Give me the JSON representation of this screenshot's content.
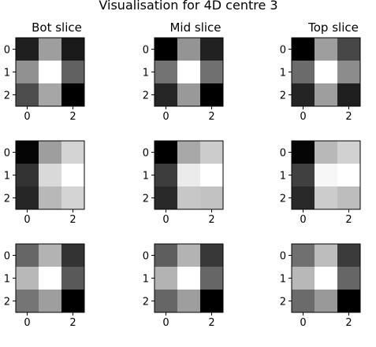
{
  "chart_data": {
    "type": "heatmap",
    "title": "Visualisation for 4D centre 3",
    "colormap": "gray",
    "grid": false,
    "column_titles": [
      "Bot slice",
      "Mid slice",
      "Top slice"
    ],
    "x_ticks": [
      "0",
      "2"
    ],
    "y_ticks": [
      "0",
      "1",
      "2"
    ],
    "panels": [
      [
        [
          [
            0.12,
            0.62,
            0.1
          ],
          [
            0.57,
            1.0,
            0.38
          ],
          [
            0.3,
            0.65,
            0.0
          ]
        ],
        [
          [
            0.0,
            0.58,
            0.13
          ],
          [
            0.45,
            1.0,
            0.44
          ],
          [
            0.15,
            0.6,
            0.0
          ]
        ],
        [
          [
            0.0,
            0.62,
            0.28
          ],
          [
            0.42,
            1.0,
            0.55
          ],
          [
            0.14,
            0.62,
            0.12
          ]
        ]
      ],
      [
        [
          [
            0.02,
            0.62,
            0.83
          ],
          [
            0.2,
            0.85,
            1.0
          ],
          [
            0.15,
            0.72,
            0.83
          ]
        ],
        [
          [
            0.0,
            0.66,
            0.8
          ],
          [
            0.24,
            0.92,
            1.0
          ],
          [
            0.16,
            0.78,
            0.76
          ]
        ],
        [
          [
            0.02,
            0.72,
            0.82
          ],
          [
            0.25,
            0.97,
            1.0
          ],
          [
            0.16,
            0.8,
            0.74
          ]
        ]
      ],
      [
        [
          [
            0.4,
            0.7,
            0.2
          ],
          [
            0.72,
            1.0,
            0.35
          ],
          [
            0.46,
            0.62,
            0.0
          ]
        ],
        [
          [
            0.37,
            0.7,
            0.22
          ],
          [
            0.7,
            1.0,
            0.4
          ],
          [
            0.4,
            0.62,
            0.0
          ]
        ],
        [
          [
            0.44,
            0.74,
            0.23
          ],
          [
            0.72,
            1.0,
            0.4
          ],
          [
            0.42,
            0.6,
            0.0
          ]
        ]
      ]
    ]
  }
}
